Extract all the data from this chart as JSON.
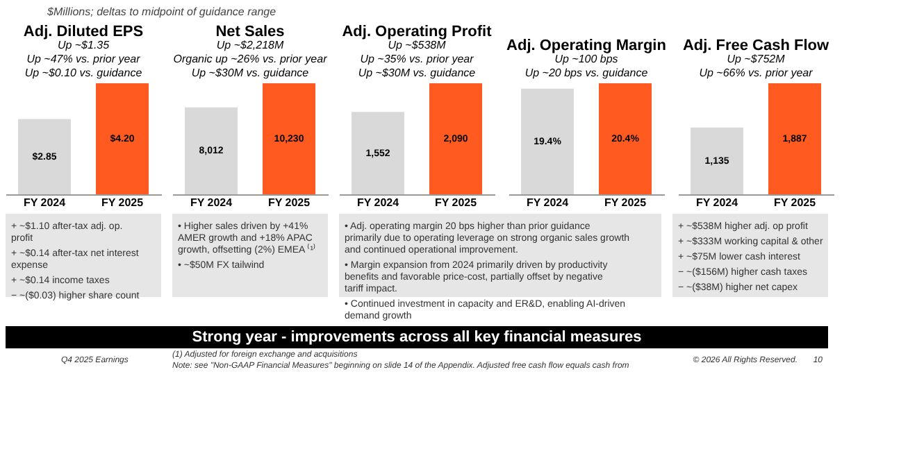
{
  "chart_data": [
    {
      "type": "bar",
      "title": "Adj. Diluted EPS",
      "subtitle": [
        "Up ~$1.35",
        "Up ~47% vs. prior year",
        "Up ~$0.10 vs.  guidance"
      ],
      "categories": [
        "FY 2024",
        "FY 2025"
      ],
      "values": [
        2.85,
        4.2
      ],
      "colors": [
        "#d9d9d9",
        "#ff5a1f"
      ],
      "value_labels": [
        "$2.85",
        "$4.20"
      ],
      "annotations": [
        "+ ~$1.10 after-tax adj. op. profit",
        "+ ~$0.14 after-tax net interest expense",
        "+ ~$0.14 income taxes",
        "− ~($0.03) higher share count"
      ]
    },
    {
      "type": "bar",
      "title": "Net Sales",
      "subtitle": [
        "Up ~$2,218M",
        "Organic up ~26% vs. prior year",
        "Up ~$30M vs. guidance"
      ],
      "categories": [
        "FY 2024",
        "FY 2025"
      ],
      "values": [
        8012,
        10230
      ],
      "colors": [
        "#d9d9d9",
        "#ff5a1f"
      ],
      "value_labels": [
        "8,012",
        "10,230"
      ],
      "annotations": [
        "• Higher sales driven by +41% AMER growth and +18% APAC growth, offsetting (2%) EMEA ⁽¹⁾",
        "• ~$50M FX tailwind"
      ]
    },
    {
      "type": "bar",
      "title": "Adj. Operating Profit",
      "subtitle": [
        "Up ~$538M",
        "Up ~35% vs. prior year",
        "Up ~$30M vs. guidance"
      ],
      "categories": [
        "FY 2024",
        "FY 2025"
      ],
      "values": [
        1552,
        2090
      ],
      "colors": [
        "#d9d9d9",
        "#ff5a1f"
      ],
      "value_labels": [
        "1,552",
        "2,090"
      ],
      "annotations": [
        "• Adj. operating margin 20 bps higher than prior guidance primarily due to operating leverage on strong organic sales growth and continued operational improvement.",
        "• Margin expansion from 2024 primarily driven by productivity benefits and favorable price-cost, partially offset by negative tariff impact.",
        "• Continued investment in capacity and ER&D, enabling AI-driven demand growth"
      ]
    },
    {
      "type": "bar",
      "title": "Adj. Operating Margin",
      "subtitle": [
        "Up ~100 bps",
        "Up ~20 bps vs. guidance"
      ],
      "categories": [
        "FY 2024",
        "FY 2025"
      ],
      "values": [
        19.4,
        20.4
      ],
      "colors": [
        "#d9d9d9",
        "#ff5a1f"
      ],
      "value_labels": [
        "19.4%",
        "20.4%"
      ]
    },
    {
      "type": "bar",
      "title": "Adj. Free Cash Flow",
      "subtitle": [
        "Up ~$752M",
        "Up ~66% vs. prior year"
      ],
      "categories": [
        "FY 2024",
        "FY 2025"
      ],
      "values": [
        1135,
        1887
      ],
      "colors": [
        "#d9d9d9",
        "#ff5a1f"
      ],
      "value_labels": [
        "1,135",
        "1,887"
      ],
      "annotations": [
        "+ ~$538M higher adj. op profit",
        "+ ~$333M working capital & other",
        "+ ~$75M lower cash interest",
        "− ~($156M) higher cash taxes",
        "− ~($38M) higher net capex"
      ]
    },
    {
      "type": "other",
      "title": "Strong year - improvements across all key financial measures",
      "subtitle": "$Millions; deltas to midpoint of guidance range",
      "annotations": [
        "Q4 2025 Earnings",
        "(1) Adjusted for foreign exchange and acquisitions",
        "Note: see \"Non-GAAP Financial Measures\" beginning on slide 14 of the Appendix.  Adjusted free cash flow equals cash from",
        "© 2026 All Rights Reserved.",
        "10"
      ]
    }
  ]
}
